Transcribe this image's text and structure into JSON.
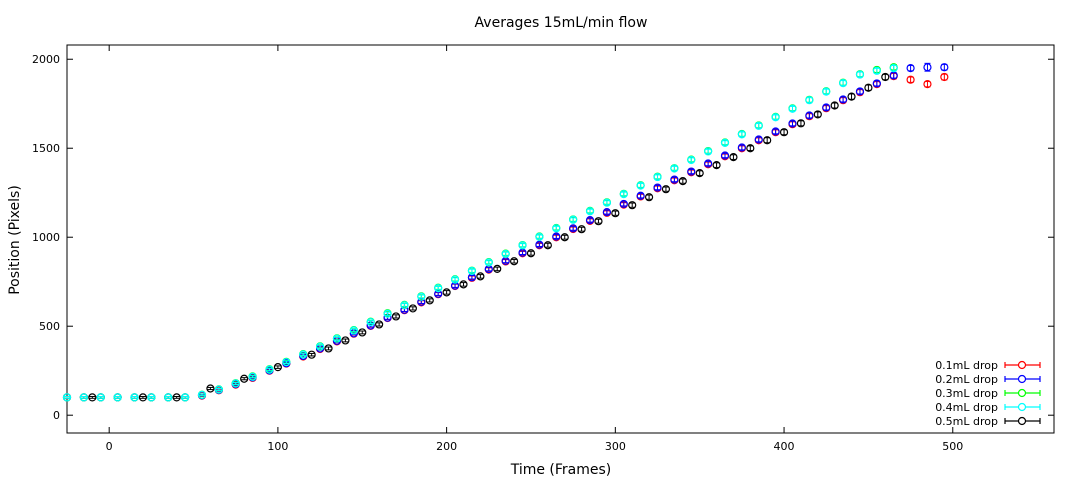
{
  "chart_data": {
    "type": "scatter",
    "title": "Averages  15mL/min flow",
    "xlabel": "Time (Frames)",
    "ylabel": "Position (Pixels)",
    "xlim": [
      -25,
      560
    ],
    "ylim": [
      -100,
      2080
    ],
    "xticks": [
      0,
      100,
      200,
      300,
      400,
      500
    ],
    "yticks": [
      0,
      500,
      1000,
      1500,
      2000
    ],
    "grid": false,
    "legend_position": "bottom-right",
    "series": [
      {
        "name": "0.1mL drop",
        "color": "#ff0000",
        "x": [
          -25,
          -15,
          -5,
          5,
          15,
          25,
          35,
          45,
          55,
          65,
          75,
          85,
          95,
          105,
          115,
          125,
          135,
          145,
          155,
          165,
          175,
          185,
          195,
          205,
          215,
          225,
          235,
          245,
          255,
          265,
          275,
          285,
          295,
          305,
          315,
          325,
          335,
          345,
          355,
          365,
          375,
          385,
          395,
          405,
          415,
          425,
          435,
          445,
          455,
          465,
          475,
          485,
          495
        ],
        "y": [
          100,
          100,
          100,
          100,
          100,
          100,
          100,
          100,
          110,
          140,
          172,
          210,
          250,
          290,
          330,
          372,
          415,
          458,
          502,
          546,
          590,
          634,
          680,
          726,
          772,
          818,
          864,
          910,
          955,
          1000,
          1046,
          1092,
          1137,
          1183,
          1229,
          1275,
          1320,
          1365,
          1410,
          1455,
          1500,
          1545,
          1590,
          1635,
          1680,
          1725,
          1770,
          1815,
          1860,
          1905,
          1885,
          1860,
          1900
        ],
        "err": [
          5,
          5,
          5,
          5,
          5,
          5,
          5,
          5,
          5,
          6,
          6,
          6,
          7,
          7,
          7,
          8,
          8,
          8,
          8,
          9,
          9,
          9,
          9,
          10,
          10,
          10,
          10,
          10,
          10,
          11,
          11,
          11,
          11,
          11,
          12,
          12,
          12,
          12,
          12,
          12,
          13,
          13,
          13,
          13,
          14,
          14,
          14,
          14,
          14,
          15,
          15,
          15,
          16
        ]
      },
      {
        "name": "0.2mL drop",
        "color": "#0000ff",
        "x": [
          -25,
          -15,
          -5,
          5,
          15,
          25,
          35,
          45,
          55,
          65,
          75,
          85,
          95,
          105,
          115,
          125,
          135,
          145,
          155,
          165,
          175,
          185,
          195,
          205,
          215,
          225,
          235,
          245,
          255,
          265,
          275,
          285,
          295,
          305,
          315,
          325,
          335,
          345,
          355,
          365,
          375,
          385,
          395,
          405,
          415,
          425,
          435,
          445,
          455,
          465,
          475,
          485,
          495
        ],
        "y": [
          100,
          100,
          100,
          100,
          100,
          100,
          100,
          100,
          112,
          142,
          175,
          213,
          252,
          292,
          333,
          375,
          418,
          460,
          504,
          548,
          592,
          637,
          682,
          728,
          775,
          821,
          867,
          913,
          958,
          1004,
          1050,
          1096,
          1141,
          1187,
          1233,
          1279,
          1324,
          1369,
          1414,
          1459,
          1504,
          1549,
          1594,
          1639,
          1684,
          1729,
          1774,
          1819,
          1864,
          1909,
          1950,
          1955,
          1955
        ],
        "err": [
          5,
          5,
          5,
          5,
          5,
          5,
          5,
          5,
          5,
          6,
          6,
          6,
          7,
          7,
          7,
          8,
          8,
          8,
          8,
          9,
          9,
          9,
          9,
          10,
          10,
          10,
          10,
          10,
          10,
          11,
          11,
          11,
          11,
          11,
          12,
          12,
          12,
          12,
          12,
          12,
          13,
          13,
          13,
          13,
          14,
          14,
          14,
          14,
          14,
          15,
          15,
          22,
          16
        ]
      },
      {
        "name": "0.3mL drop",
        "color": "#00ff00",
        "x": [
          -25,
          -15,
          -5,
          5,
          15,
          25,
          35,
          45,
          55,
          65,
          75,
          85,
          95,
          105,
          115,
          125,
          135,
          145,
          155,
          165,
          175,
          185,
          195,
          205,
          215,
          225,
          235,
          245,
          255,
          265,
          275,
          285,
          295,
          305,
          315,
          325,
          335,
          345,
          355,
          365,
          375,
          385,
          395,
          405,
          415,
          425,
          435,
          445,
          455,
          465
        ],
        "y": [
          100,
          100,
          100,
          100,
          100,
          100,
          100,
          100,
          115,
          145,
          180,
          218,
          258,
          300,
          343,
          387,
          432,
          478,
          525,
          573,
          620,
          668,
          716,
          764,
          812,
          860,
          908,
          956,
          1004,
          1052,
          1100,
          1148,
          1196,
          1244,
          1292,
          1340,
          1388,
          1436,
          1484,
          1532,
          1580,
          1628,
          1676,
          1724,
          1772,
          1820,
          1868,
          1916,
          1940,
          1955
        ],
        "err": [
          5,
          5,
          5,
          5,
          5,
          5,
          5,
          5,
          5,
          6,
          6,
          6,
          7,
          7,
          7,
          8,
          8,
          8,
          8,
          9,
          9,
          9,
          9,
          10,
          10,
          10,
          10,
          10,
          10,
          11,
          11,
          11,
          11,
          11,
          12,
          12,
          12,
          12,
          12,
          12,
          13,
          13,
          13,
          13,
          14,
          14,
          14,
          14,
          14,
          15
        ]
      },
      {
        "name": "0.4mL drop",
        "color": "#00ffff",
        "x": [
          -25,
          -15,
          -5,
          5,
          15,
          25,
          35,
          45,
          55,
          65,
          75,
          85,
          95,
          105,
          115,
          125,
          135,
          145,
          155,
          165,
          175,
          185,
          195,
          205,
          215,
          225,
          235,
          245,
          255,
          265,
          275,
          285,
          295,
          305,
          315,
          325,
          335,
          345,
          355,
          365,
          375,
          385,
          395,
          405,
          415,
          425,
          435,
          445,
          455,
          465
        ],
        "y": [
          100,
          100,
          100,
          100,
          100,
          100,
          100,
          100,
          114,
          144,
          178,
          216,
          256,
          298,
          341,
          385,
          430,
          476,
          523,
          570,
          618,
          666,
          714,
          762,
          810,
          858,
          906,
          954,
          1002,
          1050,
          1098,
          1146,
          1194,
          1242,
          1290,
          1338,
          1386,
          1434,
          1482,
          1530,
          1578,
          1626,
          1674,
          1722,
          1770,
          1818,
          1866,
          1914,
          1935,
          1950
        ],
        "err": [
          5,
          5,
          5,
          5,
          5,
          5,
          5,
          5,
          5,
          6,
          6,
          6,
          7,
          7,
          7,
          8,
          8,
          8,
          8,
          9,
          9,
          9,
          9,
          10,
          10,
          10,
          10,
          10,
          10,
          11,
          11,
          11,
          11,
          11,
          12,
          12,
          12,
          12,
          12,
          12,
          13,
          13,
          13,
          13,
          14,
          14,
          14,
          14,
          14,
          15
        ]
      },
      {
        "name": "0.5mL drop",
        "color": "#000000",
        "x": [
          -10,
          20,
          40,
          60,
          80,
          100,
          120,
          130,
          140,
          150,
          160,
          170,
          180,
          190,
          200,
          210,
          220,
          230,
          240,
          250,
          260,
          270,
          280,
          290,
          300,
          310,
          320,
          330,
          340,
          350,
          360,
          370,
          380,
          390,
          400,
          410,
          420,
          430,
          440,
          450,
          460
        ],
        "y": [
          100,
          100,
          100,
          150,
          205,
          270,
          340,
          375,
          420,
          465,
          510,
          555,
          600,
          645,
          690,
          735,
          780,
          822,
          865,
          910,
          955,
          1000,
          1045,
          1090,
          1135,
          1180,
          1225,
          1270,
          1315,
          1360,
          1405,
          1450,
          1500,
          1545,
          1590,
          1640,
          1690,
          1740,
          1790,
          1840,
          1900
        ],
        "err": [
          5,
          5,
          5,
          6,
          6,
          7,
          7,
          8,
          8,
          8,
          9,
          9,
          9,
          9,
          10,
          10,
          10,
          10,
          10,
          11,
          11,
          11,
          11,
          11,
          12,
          12,
          12,
          12,
          12,
          13,
          13,
          13,
          13,
          14,
          14,
          14,
          14,
          14,
          15,
          15,
          15
        ]
      }
    ]
  }
}
